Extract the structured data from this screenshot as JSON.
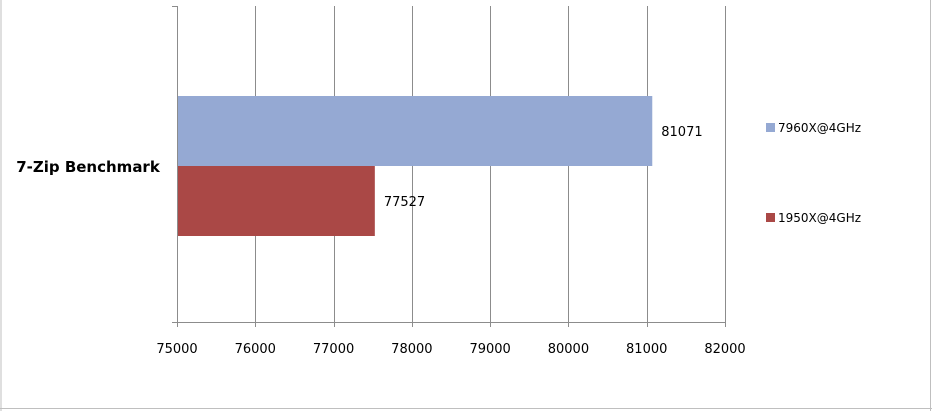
{
  "chart_data": {
    "type": "bar",
    "orientation": "horizontal",
    "categories": [
      "7-Zip Benchmark"
    ],
    "series": [
      {
        "name": "7960X@4GHz",
        "values": [
          81071
        ],
        "color": "#95A9D3",
        "label": "81071"
      },
      {
        "name": "1950X@4GHz",
        "values": [
          77527
        ],
        "color": "#AA4846",
        "label": "77527"
      }
    ],
    "xlim": [
      75000,
      82000
    ],
    "ticks": [
      75000,
      76000,
      77000,
      78000,
      79000,
      80000,
      81000,
      82000
    ],
    "tick_labels": [
      "75000",
      "76000",
      "77000",
      "78000",
      "79000",
      "80000",
      "81000",
      "82000"
    ],
    "grid": true,
    "legend": "right",
    "title": "",
    "xlabel": "",
    "ylabel": ""
  }
}
